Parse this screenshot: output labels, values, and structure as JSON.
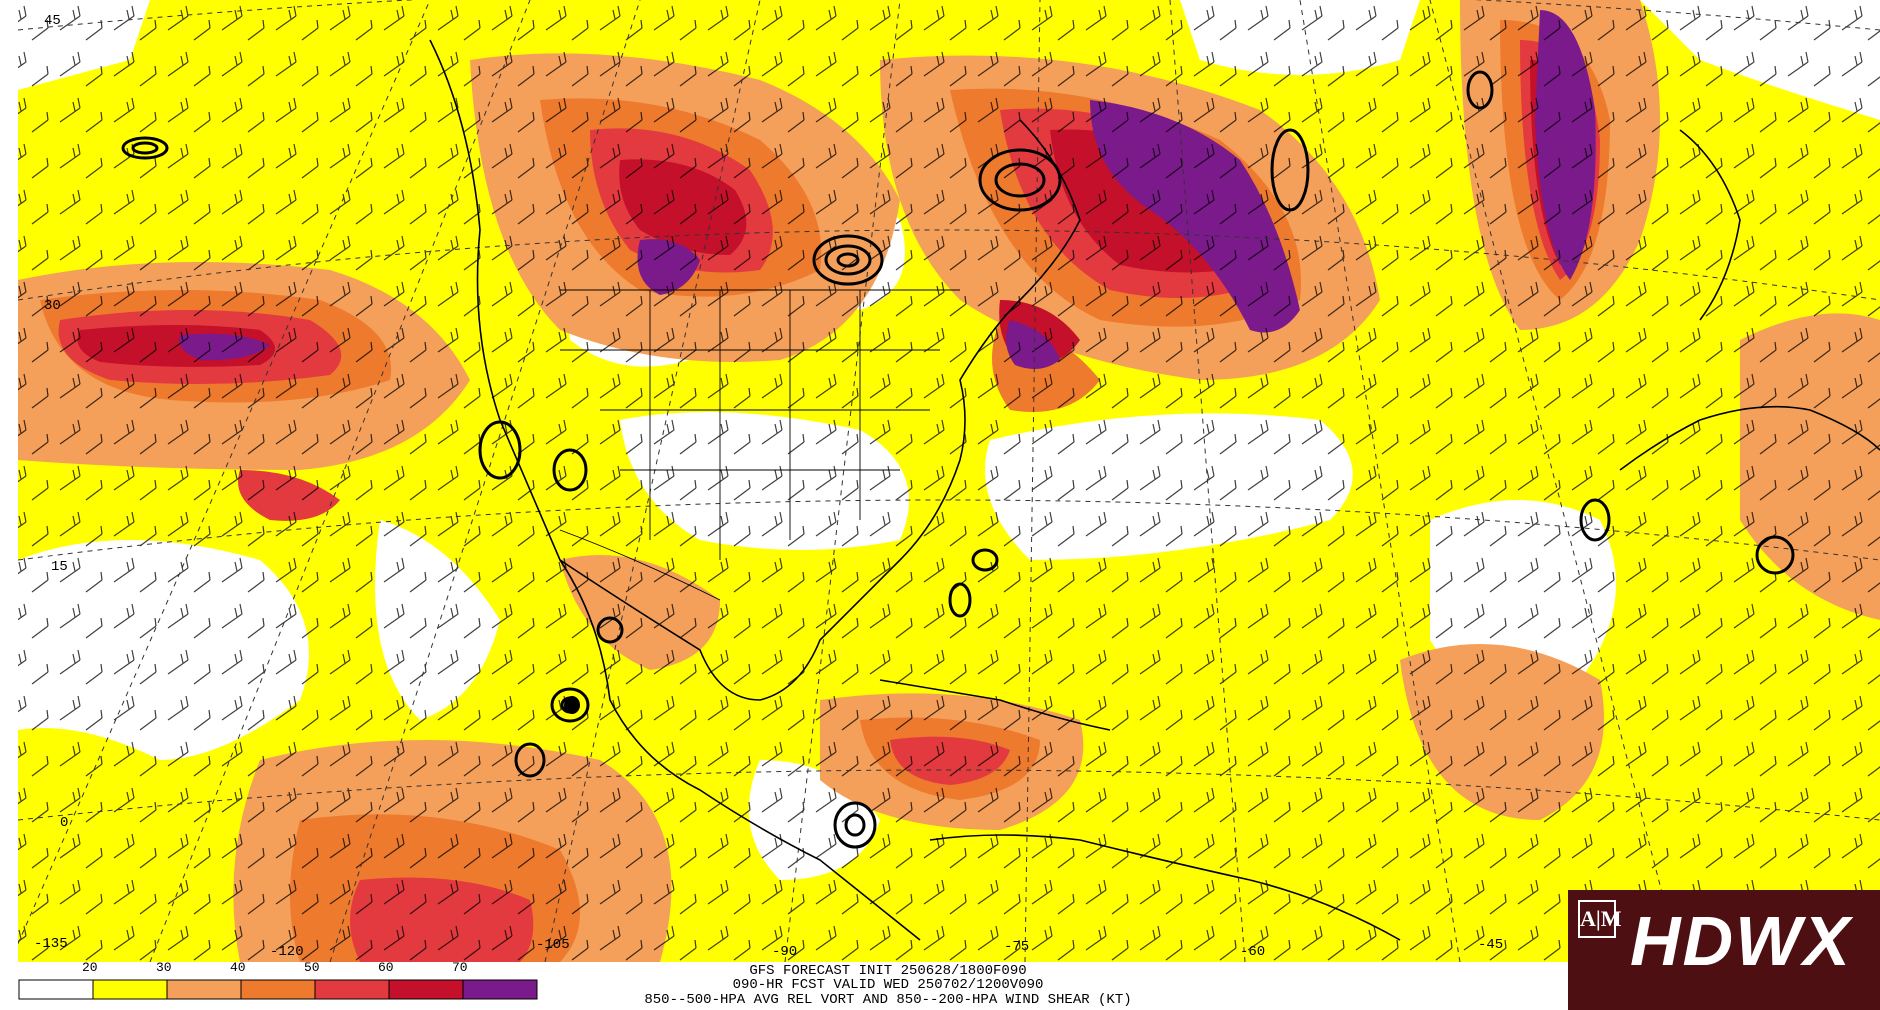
{
  "header": {
    "line1": "GFS FORECAST INIT 250628/1800F090",
    "line2": "090-HR FCST VALID WED 250702/1200V090",
    "line3": "850--500-HPA AVG REL VORT AND 850--200-HPA WIND SHEAR (KT)"
  },
  "legend": {
    "values": [
      "20",
      "30",
      "40",
      "50",
      "60",
      "70"
    ],
    "colors": [
      "#ffffff",
      "#ffff00",
      "#f5a05a",
      "#ee7a2e",
      "#e33a3f",
      "#c4102a",
      "#7b1a8a"
    ]
  },
  "lat_labels": [
    "45",
    "30",
    "15",
    "0"
  ],
  "lon_labels": [
    "-135",
    "-120",
    "-105",
    "-90",
    "-75",
    "-60",
    "-45"
  ],
  "logo": {
    "text": "HDWX",
    "emblem": "A|M"
  },
  "colors": {
    "background": "#ffffff",
    "logo_background": "#4d0f12"
  }
}
